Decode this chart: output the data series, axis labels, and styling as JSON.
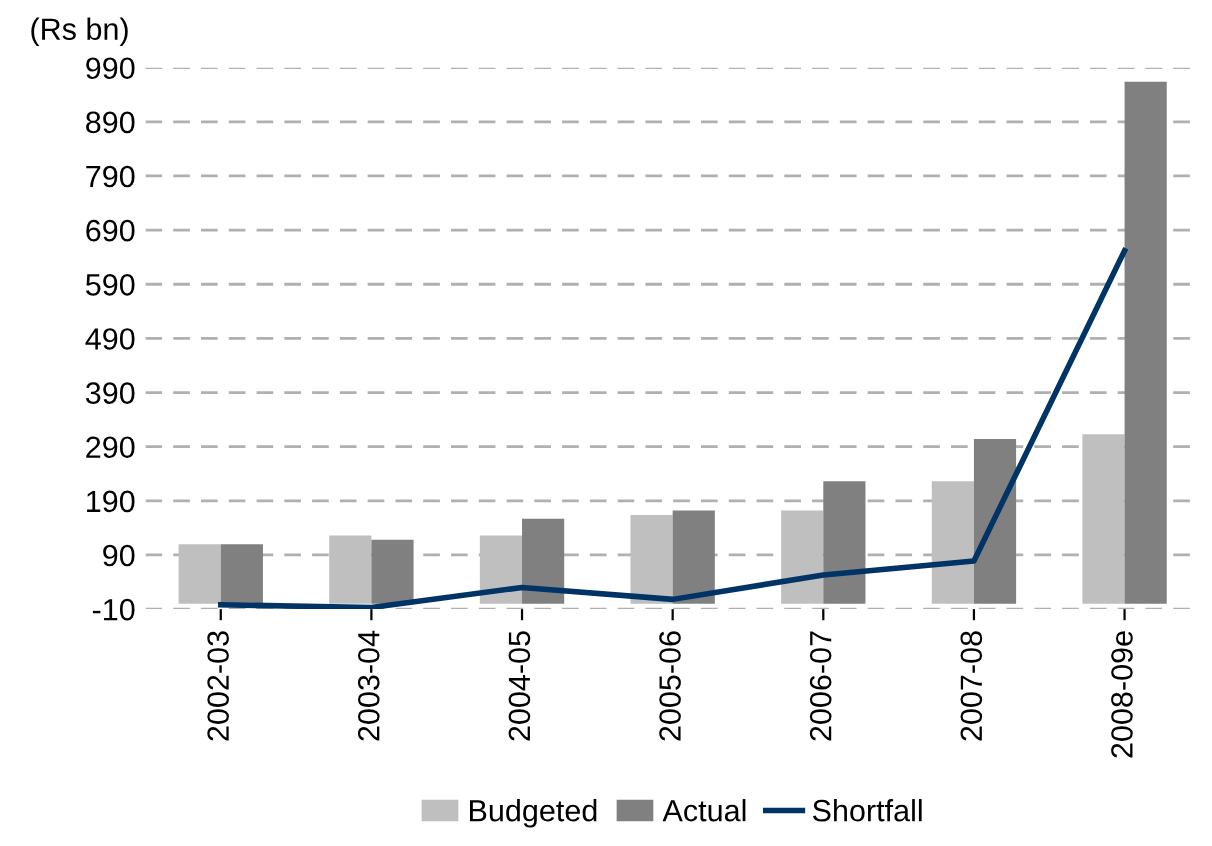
{
  "chart_data": {
    "type": "bar",
    "ylabel": "(Rs bn)",
    "categories": [
      "2002-03",
      "2003-04",
      "2004-05",
      "2005-06",
      "2006-07",
      "2007-08",
      "2008-09e"
    ],
    "series": [
      {
        "name": "Budgeted",
        "color": "#bfbfbf",
        "values": [
          110,
          126,
          126,
          164,
          172,
          226,
          313
        ]
      },
      {
        "name": "Actual",
        "color": "#808080",
        "values": [
          110,
          118,
          157,
          172,
          226,
          304,
          964
        ]
      },
      {
        "name": "Shortfall",
        "type": "line",
        "color": "#003366",
        "values": [
          -2,
          -7,
          30,
          8,
          53,
          79,
          652
        ]
      }
    ],
    "ylim": [
      -10,
      990
    ],
    "yticks": [
      -10,
      90,
      190,
      290,
      390,
      490,
      590,
      690,
      790,
      890,
      990
    ],
    "grid": "y",
    "legend": "bottom",
    "marker": "none",
    "line_style": "solid"
  }
}
